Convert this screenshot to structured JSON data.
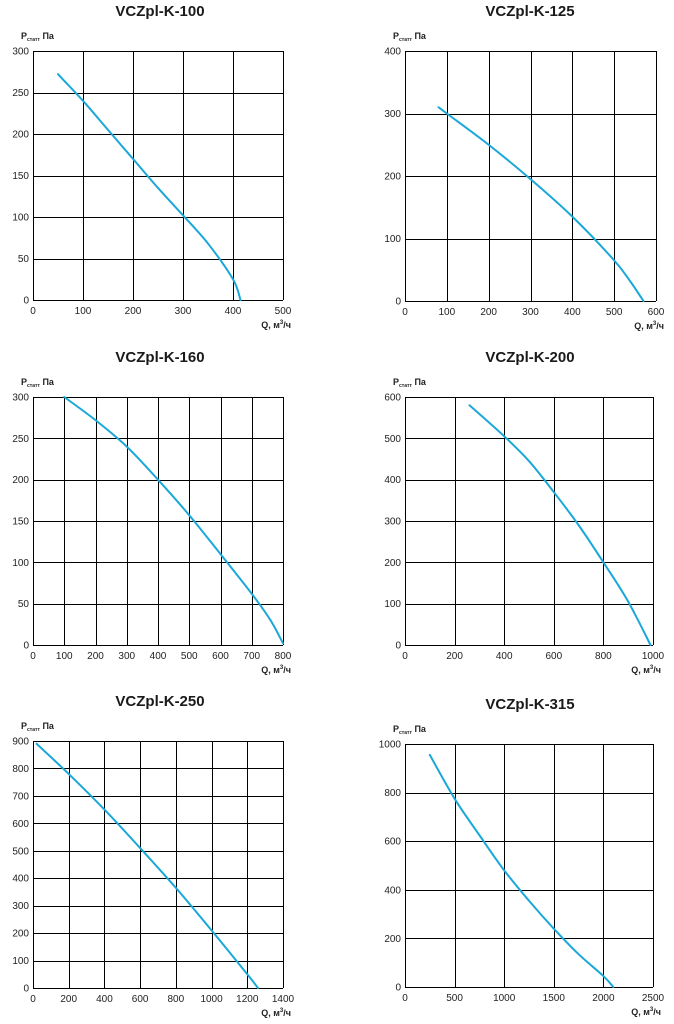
{
  "style": {
    "curve_color": "#1aa8d8",
    "grid_color": "#000000"
  },
  "chart_data": [
    {
      "type": "line",
      "title": "VCZpl-K-100",
      "ylabel": {
        "main": "P",
        "sub": "статт",
        "unit": " Па"
      },
      "xlabel": {
        "main": "Q, м",
        "sup": "3",
        "unit": "/ч"
      },
      "xlim": [
        0,
        500
      ],
      "ylim": [
        0,
        300
      ],
      "grid": true,
      "x_ticks": [
        "0",
        "100",
        "200",
        "300",
        "400",
        "500"
      ],
      "y_ticks": [
        "0",
        "50",
        "100",
        "150",
        "200",
        "250",
        "300"
      ],
      "series": [
        {
          "x": [
            50,
            100,
            150,
            200,
            250,
            300,
            350,
            400,
            415
          ],
          "y": [
            272,
            240,
            205,
            170,
            135,
            102,
            68,
            25,
            0
          ]
        }
      ]
    },
    {
      "type": "line",
      "title": "VCZpl-K-125",
      "ylabel": {
        "main": "P",
        "sub": "статт",
        "unit": " Па"
      },
      "xlabel": {
        "main": "Q, м",
        "sup": "3",
        "unit": "/ч"
      },
      "xlim": [
        0,
        600
      ],
      "ylim": [
        0,
        400
      ],
      "grid": true,
      "x_ticks": [
        "0",
        "100",
        "200",
        "300",
        "400",
        "500",
        "600"
      ],
      "y_ticks": [
        "0",
        "100",
        "200",
        "300",
        "400"
      ],
      "series": [
        {
          "x": [
            80,
            100,
            200,
            300,
            400,
            500,
            540,
            570
          ],
          "y": [
            310,
            300,
            250,
            195,
            135,
            65,
            30,
            0
          ]
        }
      ]
    },
    {
      "type": "line",
      "title": "VCZpl-K-160",
      "ylabel": {
        "main": "P",
        "sub": "статт",
        "unit": " Па"
      },
      "xlabel": {
        "main": "Q, м",
        "sup": "3",
        "unit": "/ч"
      },
      "xlim": [
        0,
        800
      ],
      "ylim": [
        0,
        300
      ],
      "grid": true,
      "x_ticks": [
        "0",
        "100",
        "200",
        "300",
        "400",
        "500",
        "600",
        "700",
        "800"
      ],
      "y_ticks": [
        "0",
        "50",
        "100",
        "150",
        "200",
        "250",
        "300"
      ],
      "series": [
        {
          "x": [
            100,
            200,
            300,
            400,
            500,
            600,
            700,
            760,
            800
          ],
          "y": [
            300,
            272,
            240,
            200,
            157,
            110,
            62,
            30,
            2
          ]
        }
      ]
    },
    {
      "type": "line",
      "title": "VCZpl-K-200",
      "ylabel": {
        "main": "P",
        "sub": "статт",
        "unit": " Па"
      },
      "xlabel": {
        "main": "Q, м",
        "sup": "3",
        "unit": "/ч"
      },
      "xlim": [
        0,
        1000
      ],
      "ylim": [
        0,
        600
      ],
      "grid": true,
      "x_ticks": [
        "0",
        "200",
        "400",
        "600",
        "800",
        "1000"
      ],
      "y_ticks": [
        "0",
        "100",
        "200",
        "300",
        "400",
        "500",
        "600"
      ],
      "series": [
        {
          "x": [
            260,
            400,
            500,
            600,
            700,
            800,
            900,
            990
          ],
          "y": [
            580,
            505,
            445,
            370,
            290,
            200,
            105,
            0
          ]
        }
      ]
    },
    {
      "type": "line",
      "title": "VCZpl-K-250",
      "ylabel": {
        "main": "P",
        "sub": "статт",
        "unit": " Па"
      },
      "xlabel": {
        "main": "Q, м",
        "sup": "3",
        "unit": "/ч"
      },
      "xlim": [
        0,
        1400
      ],
      "ylim": [
        0,
        900
      ],
      "grid": true,
      "x_ticks": [
        "0",
        "200",
        "400",
        "600",
        "800",
        "1000",
        "1200",
        "1400"
      ],
      "y_ticks": [
        "0",
        "100",
        "200",
        "300",
        "400",
        "500",
        "600",
        "700",
        "800",
        "900"
      ],
      "series": [
        {
          "x": [
            20,
            200,
            400,
            600,
            800,
            1000,
            1200,
            1260
          ],
          "y": [
            890,
            780,
            650,
            510,
            365,
            210,
            50,
            0
          ]
        }
      ]
    },
    {
      "type": "line",
      "title": "VCZpl-K-315",
      "ylabel": {
        "main": "P",
        "sub": "статт",
        "unit": " Па"
      },
      "xlabel": {
        "main": "Q, м",
        "sup": "3",
        "unit": "/ч"
      },
      "xlim": [
        0,
        2500
      ],
      "ylim": [
        0,
        1000
      ],
      "grid": true,
      "x_ticks": [
        "0",
        "500",
        "1000",
        "1500",
        "2000",
        "2500"
      ],
      "y_ticks": [
        "0",
        "200",
        "400",
        "600",
        "800",
        "1000"
      ],
      "series": [
        {
          "x": [
            250,
            500,
            750,
            1000,
            1250,
            1500,
            1750,
            2000,
            2100
          ],
          "y": [
            955,
            775,
            625,
            480,
            355,
            240,
            135,
            45,
            0
          ]
        }
      ]
    }
  ]
}
